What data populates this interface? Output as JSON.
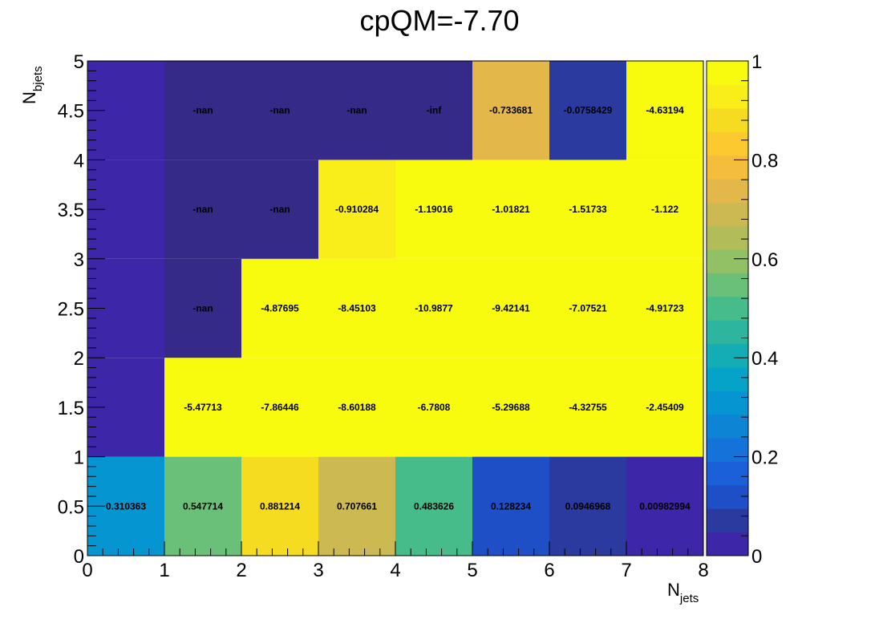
{
  "chart_data": {
    "type": "heatmap",
    "title": "cpQM=-7.70",
    "xlabel_main": "N",
    "xlabel_sub": "jets",
    "ylabel_main": "N",
    "ylabel_sub": "bjets",
    "x_edges": [
      0,
      1,
      2,
      3,
      4,
      5,
      6,
      7,
      8
    ],
    "y_edges": [
      0,
      1,
      2,
      3,
      4,
      5
    ],
    "xlim": [
      0,
      8
    ],
    "ylim": [
      0,
      5
    ],
    "x_tick_labels": [
      "0",
      "1",
      "2",
      "3",
      "4",
      "5",
      "6",
      "7",
      "8"
    ],
    "y_tick_labels": [
      "0",
      "0.5",
      "1",
      "1.5",
      "2",
      "2.5",
      "3",
      "3.5",
      "4",
      "4.5",
      "5"
    ],
    "colorbar": {
      "min": 0,
      "max": 1,
      "tick_labels": [
        "0",
        "0.2",
        "0.4",
        "0.6",
        "0.8",
        "1"
      ]
    },
    "cells": [
      {
        "x": 0.5,
        "y": 0.5,
        "label": "0.310363",
        "color_value": 0.310363
      },
      {
        "x": 1.5,
        "y": 0.5,
        "label": "0.547714",
        "color_value": 0.547714
      },
      {
        "x": 2.5,
        "y": 0.5,
        "label": "0.881214",
        "color_value": 0.881214
      },
      {
        "x": 3.5,
        "y": 0.5,
        "label": "0.707661",
        "color_value": 0.707661
      },
      {
        "x": 4.5,
        "y": 0.5,
        "label": "0.483626",
        "color_value": 0.483626
      },
      {
        "x": 5.5,
        "y": 0.5,
        "label": "0.128234",
        "color_value": 0.128234
      },
      {
        "x": 6.5,
        "y": 0.5,
        "label": "0.0946968",
        "color_value": 0.0946968
      },
      {
        "x": 7.5,
        "y": 0.5,
        "label": "0.00982994",
        "color_value": 0.00982994
      },
      {
        "x": 0.5,
        "y": 1.5,
        "label": "",
        "color_value": 0.0
      },
      {
        "x": 1.5,
        "y": 1.5,
        "label": "-5.47713",
        "color_value": 1
      },
      {
        "x": 2.5,
        "y": 1.5,
        "label": "-7.86446",
        "color_value": 1
      },
      {
        "x": 3.5,
        "y": 1.5,
        "label": "-8.60188",
        "color_value": 1
      },
      {
        "x": 4.5,
        "y": 1.5,
        "label": "-6.7808",
        "color_value": 1
      },
      {
        "x": 5.5,
        "y": 1.5,
        "label": "-5.29688",
        "color_value": 1
      },
      {
        "x": 6.5,
        "y": 1.5,
        "label": "-4.32755",
        "color_value": 1
      },
      {
        "x": 7.5,
        "y": 1.5,
        "label": "-2.45409",
        "color_value": 1
      },
      {
        "x": 0.5,
        "y": 2.5,
        "label": "",
        "color_value": 0.0
      },
      {
        "x": 1.5,
        "y": 2.5,
        "label": "-nan",
        "color_value": -1
      },
      {
        "x": 2.5,
        "y": 2.5,
        "label": "-4.87695",
        "color_value": 1
      },
      {
        "x": 3.5,
        "y": 2.5,
        "label": "-8.45103",
        "color_value": 1
      },
      {
        "x": 4.5,
        "y": 2.5,
        "label": "-10.9877",
        "color_value": 1
      },
      {
        "x": 5.5,
        "y": 2.5,
        "label": "-9.42141",
        "color_value": 1
      },
      {
        "x": 6.5,
        "y": 2.5,
        "label": "-7.07521",
        "color_value": 1
      },
      {
        "x": 7.5,
        "y": 2.5,
        "label": "-4.91723",
        "color_value": 1
      },
      {
        "x": 0.5,
        "y": 3.5,
        "label": "",
        "color_value": 0.0
      },
      {
        "x": 1.5,
        "y": 3.5,
        "label": "-nan",
        "color_value": -1
      },
      {
        "x": 2.5,
        "y": 3.5,
        "label": "-nan",
        "color_value": -1
      },
      {
        "x": 3.5,
        "y": 3.5,
        "label": "-0.910284",
        "color_value": 0.95
      },
      {
        "x": 4.5,
        "y": 3.5,
        "label": "-1.19016",
        "color_value": 1
      },
      {
        "x": 5.5,
        "y": 3.5,
        "label": "-1.01821",
        "color_value": 1
      },
      {
        "x": 6.5,
        "y": 3.5,
        "label": "-1.51733",
        "color_value": 1
      },
      {
        "x": 7.5,
        "y": 3.5,
        "label": "-1.122",
        "color_value": 1
      },
      {
        "x": 0.5,
        "y": 4.5,
        "label": "",
        "color_value": 0.0
      },
      {
        "x": 1.5,
        "y": 4.5,
        "label": "-nan",
        "color_value": -1
      },
      {
        "x": 2.5,
        "y": 4.5,
        "label": "-nan",
        "color_value": -1
      },
      {
        "x": 3.5,
        "y": 4.5,
        "label": "-nan",
        "color_value": -1
      },
      {
        "x": 4.5,
        "y": 4.5,
        "label": "-inf",
        "color_value": -1
      },
      {
        "x": 5.5,
        "y": 4.5,
        "label": "-0.733681",
        "color_value": 0.733681
      },
      {
        "x": 6.5,
        "y": 4.5,
        "label": "-0.0758429",
        "color_value": 0.0758429
      },
      {
        "x": 7.5,
        "y": 4.5,
        "label": "-4.63194",
        "color_value": 1
      }
    ],
    "colors": {
      "below_min": "#352a87",
      "palette": [
        "#3e26a8",
        "#2b3a9e",
        "#1e4fc7",
        "#1b60d9",
        "#1572d9",
        "#0e84d4",
        "#0595d0",
        "#06a3c9",
        "#14adb6",
        "#2db59f",
        "#46bc8a",
        "#6ac079",
        "#92c064",
        "#b2bd59",
        "#cdb951",
        "#e3b74a",
        "#f5bd3c",
        "#fcca2e",
        "#f6dc20",
        "#f9ee19",
        "#f9fb0e"
      ]
    }
  }
}
